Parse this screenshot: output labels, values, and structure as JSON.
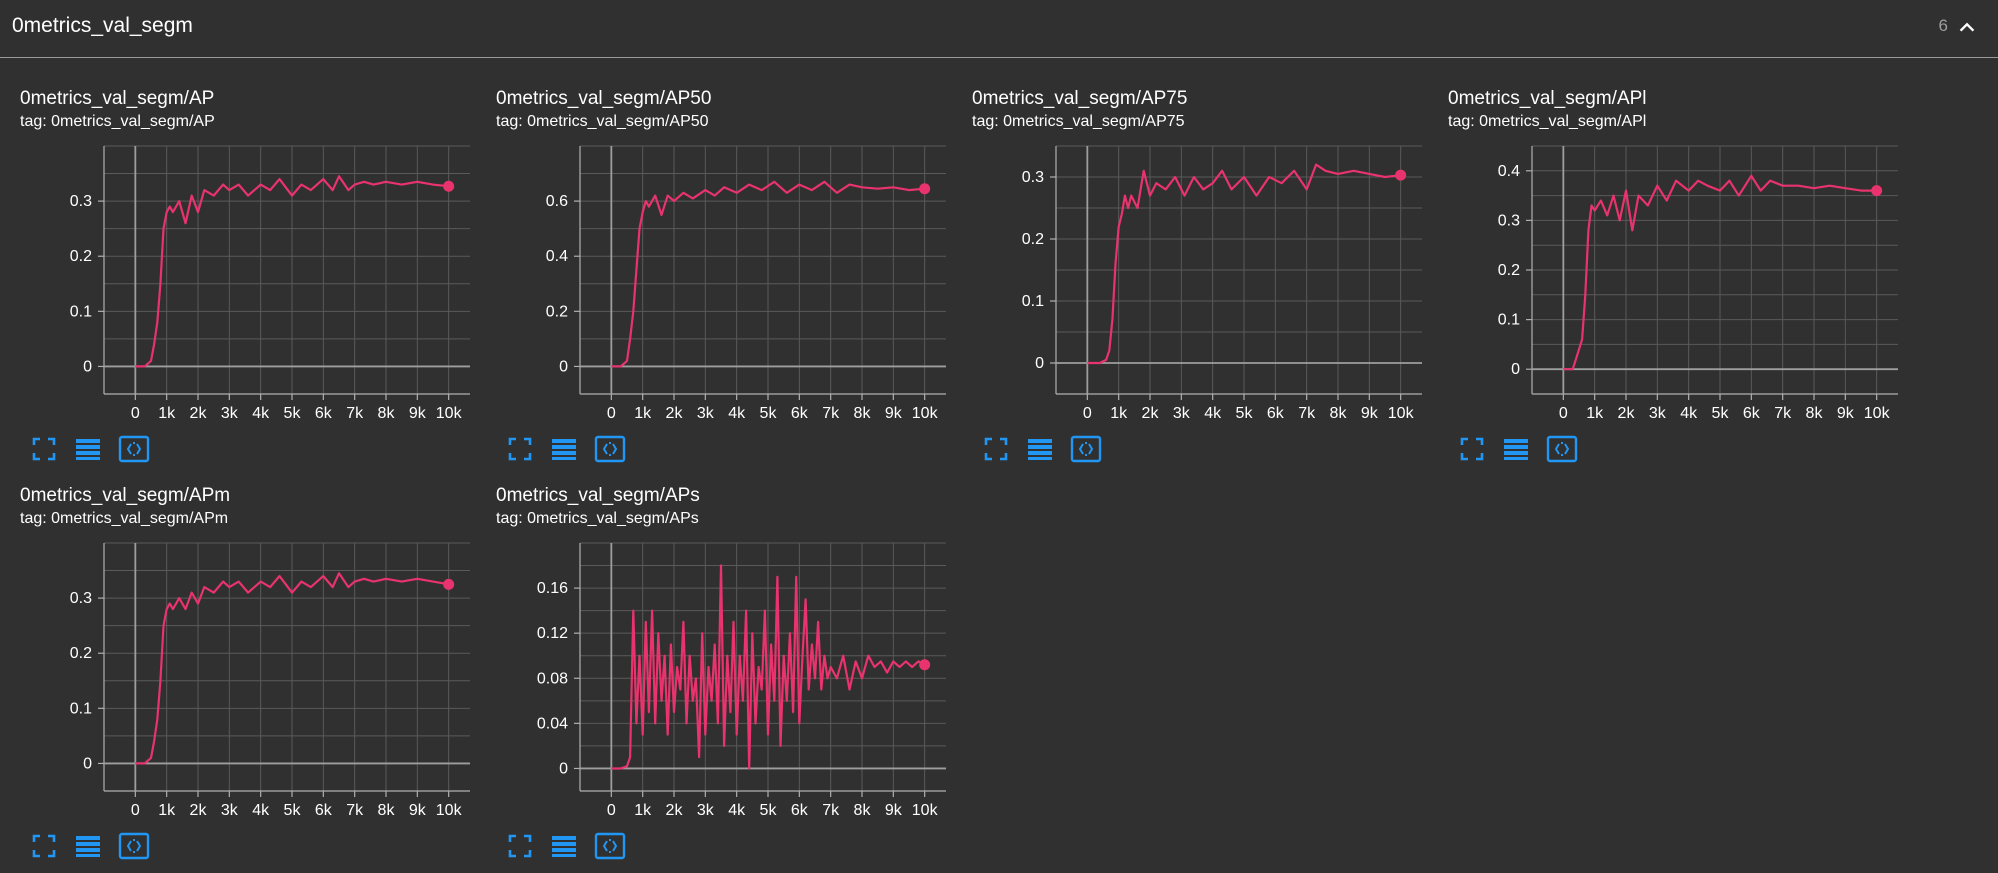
{
  "section": {
    "title": "0metrics_val_segm",
    "count": "6"
  },
  "colors": {
    "background": "#303030",
    "line": "#e8336e",
    "grid": "#5a5a5a",
    "axis": "#b0b0b0",
    "icon": "#2196f3"
  },
  "icons": [
    "fullscreen-icon",
    "data-table-icon",
    "fit-domain-icon",
    "chevron-up-icon"
  ],
  "cards": [
    {
      "title": "0metrics_val_segm/AP",
      "tag": "tag: 0metrics_val_segm/AP"
    },
    {
      "title": "0metrics_val_segm/AP50",
      "tag": "tag: 0metrics_val_segm/AP50"
    },
    {
      "title": "0metrics_val_segm/AP75",
      "tag": "tag: 0metrics_val_segm/AP75"
    },
    {
      "title": "0metrics_val_segm/APl",
      "tag": "tag: 0metrics_val_segm/APl"
    },
    {
      "title": "0metrics_val_segm/APm",
      "tag": "tag: 0metrics_val_segm/APm"
    },
    {
      "title": "0metrics_val_segm/APs",
      "tag": "tag: 0metrics_val_segm/APs"
    }
  ],
  "chart_data": [
    {
      "type": "line",
      "title": "0metrics_val_segm/AP",
      "xlim": [
        -1000,
        11000
      ],
      "ylim": [
        -0.05,
        0.4
      ],
      "xticks": [
        0,
        1000,
        2000,
        3000,
        4000,
        5000,
        6000,
        7000,
        8000,
        9000,
        10000
      ],
      "xtick_labels": [
        "0",
        "1k",
        "2k",
        "3k",
        "4k",
        "5k",
        "6k",
        "7k",
        "8k",
        "9k",
        "10k"
      ],
      "yticks": [
        0,
        0.1,
        0.2,
        0.3
      ],
      "ytick_labels": [
        "0",
        "0.1",
        "0.2",
        "0.3"
      ],
      "grid": true,
      "series": [
        {
          "x": [
            0,
            300,
            500,
            600,
            700,
            800,
            900,
            1000,
            1100,
            1200,
            1300,
            1400,
            1600,
            1800,
            2000,
            2200,
            2500,
            2800,
            3000,
            3300,
            3600,
            4000,
            4300,
            4600,
            5000,
            5300,
            5600,
            6000,
            6300,
            6500,
            6800,
            7000,
            7300,
            7600,
            8000,
            8500,
            9000,
            9500,
            10000
          ],
          "y": [
            0,
            0,
            0.01,
            0.04,
            0.08,
            0.15,
            0.25,
            0.28,
            0.29,
            0.28,
            0.29,
            0.3,
            0.26,
            0.31,
            0.28,
            0.32,
            0.31,
            0.33,
            0.32,
            0.33,
            0.31,
            0.33,
            0.32,
            0.34,
            0.31,
            0.33,
            0.32,
            0.34,
            0.32,
            0.345,
            0.32,
            0.33,
            0.335,
            0.33,
            0.335,
            0.33,
            0.335,
            0.33,
            0.327
          ]
        }
      ]
    },
    {
      "type": "line",
      "title": "0metrics_val_segm/AP50",
      "xlim": [
        -1000,
        11000
      ],
      "ylim": [
        -0.1,
        0.8
      ],
      "xticks": [
        0,
        1000,
        2000,
        3000,
        4000,
        5000,
        6000,
        7000,
        8000,
        9000,
        10000
      ],
      "xtick_labels": [
        "0",
        "1k",
        "2k",
        "3k",
        "4k",
        "5k",
        "6k",
        "7k",
        "8k",
        "9k",
        "10k"
      ],
      "yticks": [
        0,
        0.2,
        0.4,
        0.6
      ],
      "ytick_labels": [
        "0",
        "0.2",
        "0.4",
        "0.6"
      ],
      "grid": true,
      "series": [
        {
          "x": [
            0,
            300,
            500,
            600,
            700,
            800,
            900,
            1000,
            1100,
            1200,
            1400,
            1600,
            1800,
            2000,
            2300,
            2600,
            3000,
            3300,
            3600,
            4000,
            4400,
            4800,
            5200,
            5600,
            6000,
            6400,
            6800,
            7200,
            7600,
            8000,
            8500,
            9000,
            9500,
            10000
          ],
          "y": [
            0,
            0,
            0.02,
            0.1,
            0.2,
            0.35,
            0.5,
            0.56,
            0.6,
            0.58,
            0.62,
            0.55,
            0.62,
            0.6,
            0.63,
            0.61,
            0.64,
            0.62,
            0.65,
            0.63,
            0.66,
            0.64,
            0.67,
            0.63,
            0.66,
            0.64,
            0.67,
            0.63,
            0.66,
            0.65,
            0.645,
            0.65,
            0.64,
            0.645
          ]
        }
      ]
    },
    {
      "type": "line",
      "title": "0metrics_val_segm/AP75",
      "xlim": [
        -1000,
        11000
      ],
      "ylim": [
        -0.05,
        0.35
      ],
      "xticks": [
        0,
        1000,
        2000,
        3000,
        4000,
        5000,
        6000,
        7000,
        8000,
        9000,
        10000
      ],
      "xtick_labels": [
        "0",
        "1k",
        "2k",
        "3k",
        "4k",
        "5k",
        "6k",
        "7k",
        "8k",
        "9k",
        "10k"
      ],
      "yticks": [
        0,
        0.1,
        0.2,
        0.3
      ],
      "ytick_labels": [
        "0",
        "0.1",
        "0.2",
        "0.3"
      ],
      "grid": true,
      "series": [
        {
          "x": [
            0,
            400,
            600,
            700,
            800,
            900,
            1000,
            1100,
            1200,
            1300,
            1400,
            1600,
            1800,
            2000,
            2200,
            2500,
            2800,
            3100,
            3400,
            3700,
            4000,
            4300,
            4600,
            5000,
            5400,
            5800,
            6200,
            6600,
            7000,
            7300,
            7600,
            8000,
            8500,
            9000,
            9500,
            10000
          ],
          "y": [
            0,
            0,
            0.005,
            0.02,
            0.07,
            0.16,
            0.22,
            0.24,
            0.27,
            0.25,
            0.27,
            0.25,
            0.31,
            0.27,
            0.29,
            0.28,
            0.3,
            0.27,
            0.3,
            0.28,
            0.29,
            0.31,
            0.28,
            0.3,
            0.27,
            0.3,
            0.29,
            0.31,
            0.28,
            0.32,
            0.31,
            0.305,
            0.31,
            0.305,
            0.3,
            0.303
          ]
        }
      ]
    },
    {
      "type": "line",
      "title": "0metrics_val_segm/APl",
      "xlim": [
        -1000,
        11000
      ],
      "ylim": [
        -0.05,
        0.45
      ],
      "xticks": [
        0,
        1000,
        2000,
        3000,
        4000,
        5000,
        6000,
        7000,
        8000,
        9000,
        10000
      ],
      "xtick_labels": [
        "0",
        "1k",
        "2k",
        "3k",
        "4k",
        "5k",
        "6k",
        "7k",
        "8k",
        "9k",
        "10k"
      ],
      "yticks": [
        0,
        0.1,
        0.2,
        0.3,
        0.4
      ],
      "ytick_labels": [
        "0",
        "0.1",
        "0.2",
        "0.3",
        "0.4"
      ],
      "grid": true,
      "series": [
        {
          "x": [
            0,
            300,
            400,
            500,
            600,
            700,
            800,
            900,
            1000,
            1200,
            1400,
            1600,
            1800,
            2000,
            2200,
            2400,
            2700,
            3000,
            3300,
            3600,
            4000,
            4300,
            4600,
            5000,
            5300,
            5600,
            6000,
            6300,
            6600,
            7000,
            7500,
            8000,
            8500,
            9000,
            9500,
            10000
          ],
          "y": [
            0,
            0,
            0.02,
            0.04,
            0.06,
            0.15,
            0.28,
            0.33,
            0.32,
            0.34,
            0.31,
            0.35,
            0.3,
            0.36,
            0.28,
            0.35,
            0.33,
            0.37,
            0.34,
            0.38,
            0.36,
            0.38,
            0.37,
            0.36,
            0.38,
            0.35,
            0.39,
            0.36,
            0.38,
            0.37,
            0.37,
            0.365,
            0.37,
            0.365,
            0.36,
            0.36
          ]
        }
      ]
    },
    {
      "type": "line",
      "title": "0metrics_val_segm/APm",
      "xlim": [
        -1000,
        11000
      ],
      "ylim": [
        -0.05,
        0.4
      ],
      "xticks": [
        0,
        1000,
        2000,
        3000,
        4000,
        5000,
        6000,
        7000,
        8000,
        9000,
        10000
      ],
      "xtick_labels": [
        "0",
        "1k",
        "2k",
        "3k",
        "4k",
        "5k",
        "6k",
        "7k",
        "8k",
        "9k",
        "10k"
      ],
      "yticks": [
        0,
        0.1,
        0.2,
        0.3
      ],
      "ytick_labels": [
        "0",
        "0.1",
        "0.2",
        "0.3"
      ],
      "grid": true,
      "series": [
        {
          "x": [
            0,
            300,
            500,
            600,
            700,
            800,
            900,
            1000,
            1100,
            1200,
            1300,
            1400,
            1600,
            1800,
            2000,
            2200,
            2500,
            2800,
            3000,
            3300,
            3600,
            4000,
            4300,
            4600,
            5000,
            5300,
            5600,
            6000,
            6300,
            6500,
            6800,
            7000,
            7300,
            7600,
            8000,
            8500,
            9000,
            9500,
            10000
          ],
          "y": [
            0,
            0,
            0.01,
            0.04,
            0.08,
            0.15,
            0.25,
            0.28,
            0.29,
            0.28,
            0.29,
            0.3,
            0.28,
            0.31,
            0.29,
            0.32,
            0.31,
            0.33,
            0.32,
            0.33,
            0.31,
            0.33,
            0.32,
            0.34,
            0.31,
            0.33,
            0.32,
            0.34,
            0.32,
            0.345,
            0.32,
            0.33,
            0.335,
            0.33,
            0.335,
            0.33,
            0.335,
            0.33,
            0.325
          ]
        }
      ]
    },
    {
      "type": "line",
      "title": "0metrics_val_segm/APs",
      "xlim": [
        -1000,
        11000
      ],
      "ylim": [
        -0.02,
        0.2
      ],
      "xticks": [
        0,
        1000,
        2000,
        3000,
        4000,
        5000,
        6000,
        7000,
        8000,
        9000,
        10000
      ],
      "xtick_labels": [
        "0",
        "1k",
        "2k",
        "3k",
        "4k",
        "5k",
        "6k",
        "7k",
        "8k",
        "9k",
        "10k"
      ],
      "yticks": [
        0,
        0.04,
        0.08,
        0.12,
        0.16
      ],
      "ytick_labels": [
        "0",
        "0.04",
        "0.08",
        "0.12",
        "0.16"
      ],
      "grid": true,
      "series": [
        {
          "x": [
            0,
            300,
            500,
            600,
            700,
            800,
            900,
            1000,
            1100,
            1200,
            1300,
            1400,
            1500,
            1600,
            1700,
            1800,
            1900,
            2000,
            2100,
            2200,
            2300,
            2400,
            2500,
            2600,
            2700,
            2800,
            2900,
            3000,
            3100,
            3200,
            3300,
            3400,
            3500,
            3600,
            3700,
            3800,
            3900,
            4000,
            4100,
            4200,
            4300,
            4400,
            4500,
            4600,
            4700,
            4800,
            4900,
            5000,
            5100,
            5200,
            5300,
            5400,
            5500,
            5600,
            5700,
            5800,
            5900,
            6000,
            6100,
            6200,
            6300,
            6400,
            6500,
            6600,
            6700,
            6800,
            6900,
            7000,
            7200,
            7400,
            7600,
            7800,
            8000,
            8200,
            8400,
            8600,
            8800,
            9000,
            9200,
            9400,
            9600,
            9800,
            10000
          ],
          "y": [
            0,
            0,
            0.002,
            0.01,
            0.14,
            0.04,
            0.1,
            0.03,
            0.13,
            0.05,
            0.14,
            0.04,
            0.12,
            0.06,
            0.1,
            0.03,
            0.11,
            0.05,
            0.09,
            0.07,
            0.13,
            0.04,
            0.1,
            0.06,
            0.08,
            0.01,
            0.12,
            0.03,
            0.09,
            0.06,
            0.11,
            0.04,
            0.18,
            0.02,
            0.1,
            0.05,
            0.13,
            0.03,
            0.1,
            0.06,
            0.14,
            0.0,
            0.12,
            0.04,
            0.09,
            0.07,
            0.14,
            0.03,
            0.11,
            0.06,
            0.17,
            0.02,
            0.1,
            0.06,
            0.12,
            0.05,
            0.17,
            0.04,
            0.1,
            0.15,
            0.07,
            0.11,
            0.08,
            0.13,
            0.07,
            0.1,
            0.08,
            0.09,
            0.08,
            0.1,
            0.07,
            0.095,
            0.08,
            0.1,
            0.09,
            0.095,
            0.085,
            0.095,
            0.09,
            0.095,
            0.09,
            0.095,
            0.092
          ]
        }
      ]
    }
  ]
}
